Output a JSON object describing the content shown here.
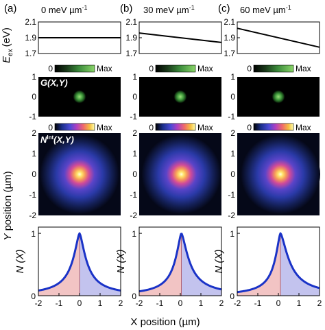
{
  "columns": [
    {
      "letter": "(a)",
      "title": "0 meV µm",
      "title_sup": "-1",
      "gradient": 0
    },
    {
      "letter": "(b)",
      "title": "30 meV µm",
      "title_sup": "-1",
      "gradient": 30
    },
    {
      "letter": "(c)",
      "title": "60 meV µm",
      "title_sup": "-1",
      "gradient": 60
    }
  ],
  "colorbar": {
    "min_label": "0",
    "max_label": "Max"
  },
  "colors": {
    "line": "#000000",
    "profile_line": "#1a33c7",
    "fill_left": "#f2c4c4",
    "fill_right": "#c3c3ee",
    "center_marker": "#b06070"
  },
  "labels": {
    "eex_main": "E",
    "eex_sub": "ex",
    "eex_unit": "(eV)",
    "g_map": "G(X,Y)",
    "n_map_main": "N",
    "n_map_sup": "Int",
    "n_map_args": "(X,Y)",
    "y_axis": "Y position (µm)",
    "x_axis": "X position (µm)",
    "nx_axis": "N (X)"
  },
  "chart_data": [
    {
      "type": "line",
      "panel": "energy",
      "ylabel": "E_ex (eV)",
      "xlim": [
        -2,
        2
      ],
      "ylim": [
        1.7,
        2.1
      ],
      "yticks": [
        "2.1",
        "1.9",
        "1.7"
      ],
      "yticks_values": [
        2.1,
        1.9,
        1.7
      ],
      "series": [
        {
          "x": [
            -2,
            2
          ],
          "y": [
            1.9,
            1.9
          ]
        },
        {
          "x": [
            -2,
            2
          ],
          "y": [
            1.96,
            1.84
          ]
        },
        {
          "x": [
            -2,
            2
          ],
          "y": [
            2.02,
            1.78
          ]
        }
      ]
    },
    {
      "type": "heatmap",
      "panel": "G(X,Y)",
      "xlim": [
        -2,
        2
      ],
      "ylim": [
        -1,
        1
      ],
      "yticks": [
        "1",
        "0",
        "-1"
      ],
      "yticks_values": [
        1,
        0,
        -1
      ],
      "spot_center": [
        0,
        0
      ]
    },
    {
      "type": "heatmap",
      "panel": "N_Int(X,Y)",
      "xlim": [
        -2,
        2
      ],
      "ylim": [
        -2,
        2
      ],
      "yticks": [
        "2",
        "1",
        "0",
        "-1",
        "-2"
      ],
      "yticks_values": [
        2,
        1,
        0,
        -1,
        -2
      ],
      "peak_x": [
        0.0,
        0.05,
        0.1
      ]
    },
    {
      "type": "area",
      "panel": "N(X)",
      "xlabel": "X position (µm)",
      "ylabel": "N (X)",
      "xlim": [
        -2,
        2
      ],
      "ylim": [
        0,
        1.1
      ],
      "xticks": [
        "-2",
        "-1",
        "0",
        "1",
        "2"
      ],
      "xticks_values": [
        -2,
        -1,
        0,
        1,
        2
      ],
      "yticks": [
        "1",
        "0"
      ],
      "yticks_values": [
        1,
        0
      ],
      "series": [
        {
          "peak_x": 0.0,
          "decay_left": 0.55,
          "decay_right": 0.55
        },
        {
          "peak_x": 0.05,
          "decay_left": 0.5,
          "decay_right": 0.62
        },
        {
          "peak_x": 0.1,
          "decay_left": 0.45,
          "decay_right": 0.7
        }
      ]
    }
  ]
}
